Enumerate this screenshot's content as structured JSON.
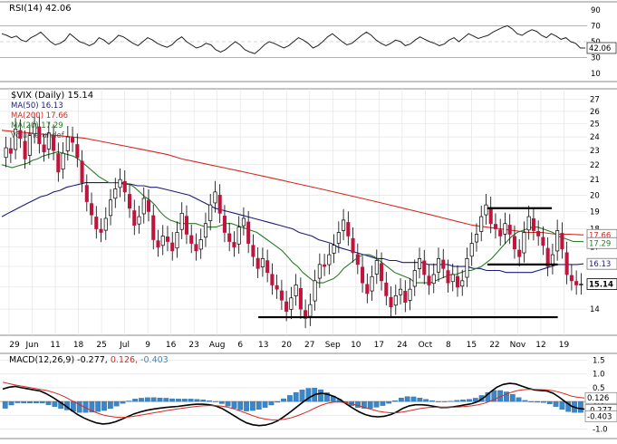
{
  "chart_data": [
    {
      "type": "line",
      "panel": "rsi",
      "title": "RSI(14) 42.06",
      "ticks": [
        "90",
        "70",
        "50",
        "30",
        "10"
      ],
      "tick_values": [
        90,
        70,
        50,
        30,
        10
      ],
      "ylim": [
        0,
        100
      ],
      "guides": [
        70,
        30
      ],
      "last_value_label": "42.06",
      "last_value": 42.06,
      "series": [
        {
          "values": [
            60,
            58,
            55,
            57,
            52,
            50,
            55,
            58,
            62,
            56,
            50,
            46,
            48,
            52,
            60,
            55,
            50,
            48,
            45,
            48,
            55,
            52,
            47,
            52,
            58,
            56,
            52,
            48,
            45,
            50,
            55,
            52,
            48,
            45,
            43,
            46,
            52,
            56,
            50,
            46,
            42,
            44,
            48,
            46,
            40,
            37,
            40,
            45,
            50,
            46,
            40,
            37,
            35,
            40,
            46,
            50,
            48,
            45,
            42,
            45,
            50,
            55,
            52,
            48,
            42,
            45,
            50,
            56,
            60,
            55,
            50,
            46,
            48,
            53,
            58,
            62,
            58,
            52,
            48,
            45,
            48,
            52,
            50,
            45,
            47,
            52,
            56,
            53,
            50,
            48,
            45,
            47,
            52,
            55,
            50,
            55,
            60,
            57,
            54,
            56,
            58,
            62,
            65,
            68,
            70,
            66,
            60,
            58,
            62,
            65,
            63,
            58,
            55,
            60,
            57,
            53,
            55,
            50,
            48,
            42,
            42
          ]
        }
      ],
      "colors": {
        "line": "#222222",
        "guide": "#999999",
        "label_bg": "#ffffff"
      }
    },
    {
      "type": "candlestick",
      "panel": "price",
      "title": "$VIX (Daily) 15.14",
      "ylim": [
        12.9,
        27.9
      ],
      "log_scale": true,
      "ticks": [
        "27",
        "26",
        "25",
        "24",
        "23",
        "22",
        "21",
        "20",
        "19",
        "18",
        "17",
        "16",
        "15",
        "14"
      ],
      "tick_values": [
        27,
        26,
        25,
        24,
        23,
        22,
        21,
        20,
        19,
        18,
        17,
        16,
        15,
        14
      ],
      "legend": [
        {
          "label": "MA(50) 16.13",
          "color": "#1c1c7a"
        },
        {
          "label": "MA(200) 17.66",
          "color": "#d42a20"
        },
        {
          "label": "MA(20) 17.29",
          "color": "#2a7a2a"
        },
        {
          "label": "Volume undef",
          "color": "#777777"
        }
      ],
      "right_labels": [
        {
          "text": "17.66",
          "value": 17.66,
          "color": "#d42a20"
        },
        {
          "text": "17.29",
          "value": 17.29,
          "color": "#2a7a2a"
        },
        {
          "text": "16.13",
          "value": 16.13,
          "color": "#1c1c7a"
        },
        {
          "text": "15.14",
          "value": 15.14,
          "color": "#000000",
          "bold": true
        }
      ],
      "close": [
        23.2,
        22.8,
        24.6,
        23.9,
        22.4,
        24.1,
        25.0,
        23.5,
        22.9,
        24.3,
        23.0,
        21.5,
        22.8,
        24.0,
        23.6,
        22.5,
        20.8,
        19.6,
        18.8,
        18.0,
        17.8,
        18.6,
        19.7,
        20.4,
        21.0,
        20.2,
        19.2,
        18.2,
        18.7,
        19.8,
        19.0,
        17.4,
        17.0,
        17.6,
        17.3,
        16.8,
        17.8,
        18.9,
        17.7,
        17.2,
        16.8,
        17.4,
        18.3,
        19.4,
        20.2,
        18.9,
        17.8,
        17.3,
        17.0,
        18.1,
        18.6,
        17.2,
        16.5,
        15.9,
        16.4,
        15.7,
        15.1,
        14.9,
        14.4,
        13.9,
        14.5,
        15.1,
        14.0,
        13.6,
        14.2,
        15.3,
        16.1,
        16.0,
        16.6,
        17.1,
        17.8,
        18.5,
        17.6,
        16.7,
        16.1,
        15.2,
        14.7,
        15.5,
        16.3,
        15.3,
        14.6,
        14.1,
        14.6,
        14.9,
        14.3,
        14.9,
        15.8,
        16.4,
        15.6,
        15.1,
        15.6,
        16.4,
        15.9,
        15.2,
        15.6,
        15.0,
        15.3,
        16.4,
        17.2,
        17.7,
        18.7,
        19.4,
        18.3,
        18.0,
        17.6,
        18.3,
        17.7,
        16.9,
        16.5,
        17.8,
        18.7,
        17.9,
        17.6,
        17.1,
        16.0,
        16.6,
        17.9,
        16.9,
        15.6,
        15.3,
        15.1,
        15.14
      ],
      "ma20": [
        22.0,
        21.9,
        21.8,
        21.9,
        22.0,
        22.1,
        22.3,
        22.4,
        22.6,
        22.7,
        22.8,
        22.9,
        22.8,
        22.7,
        22.6,
        22.4,
        22.1,
        21.8,
        21.5,
        21.2,
        21.0,
        20.8,
        20.8,
        20.8,
        20.8,
        20.7,
        20.5,
        20.2,
        19.9,
        19.7,
        19.4,
        19.0,
        18.7,
        18.5,
        18.4,
        18.3,
        18.3,
        18.3,
        18.3,
        18.2,
        18.1,
        18.1,
        18.1,
        18.2,
        18.3,
        18.3,
        18.2,
        18.1,
        18.0,
        17.9,
        17.8,
        17.6,
        17.4,
        17.2,
        17.0,
        16.8,
        16.5,
        16.2,
        16.0,
        15.7,
        15.5,
        15.3,
        15.2,
        15.2,
        15.3,
        15.4,
        15.6,
        15.9,
        16.1,
        16.3,
        16.5,
        16.6,
        16.6,
        16.5,
        16.3,
        16.1,
        15.9,
        15.7,
        15.6,
        15.5,
        15.4,
        15.2,
        15.2,
        15.2,
        15.2,
        15.3,
        15.4,
        15.5,
        15.6,
        15.6,
        15.7,
        15.8,
        15.8,
        15.9,
        16.0,
        16.2,
        16.4,
        16.7,
        17.0,
        17.3,
        17.6,
        17.8,
        17.9,
        18.0,
        18.1,
        18.1,
        18.0,
        17.9,
        17.8,
        17.6,
        17.5,
        17.4,
        17.3,
        17.3,
        17.29
      ],
      "ma50": [
        18.7,
        18.9,
        19.1,
        19.3,
        19.5,
        19.7,
        19.9,
        20.0,
        20.2,
        20.3,
        20.5,
        20.6,
        20.7,
        20.8,
        20.8,
        20.8,
        20.8,
        20.8,
        20.8,
        20.7,
        20.7,
        20.6,
        20.6,
        20.5,
        20.5,
        20.4,
        20.3,
        20.2,
        20.1,
        20.0,
        19.8,
        19.6,
        19.4,
        19.2,
        19.1,
        19.0,
        18.9,
        18.8,
        18.7,
        18.6,
        18.5,
        18.4,
        18.3,
        18.2,
        18.1,
        18.0,
        17.8,
        17.7,
        17.6,
        17.4,
        17.3,
        17.2,
        17.0,
        16.9,
        16.8,
        16.7,
        16.6,
        16.5,
        16.4,
        16.4,
        16.3,
        16.3,
        16.2,
        16.2,
        16.2,
        16.2,
        16.1,
        16.1,
        16.1,
        16.1,
        16.0,
        16.0,
        16.0,
        15.9,
        15.9,
        15.8,
        15.8,
        15.8,
        15.7,
        15.7,
        15.7,
        15.7,
        15.7,
        15.8,
        15.9,
        16.0,
        16.1,
        16.1,
        16.1,
        16.1,
        16.13
      ],
      "ma200": [
        24.5,
        24.4,
        24.3,
        24.2,
        24.1,
        24.0,
        23.9,
        23.7,
        23.5,
        23.3,
        23.1,
        22.9,
        22.7,
        22.4,
        22.2,
        22.0,
        21.8,
        21.6,
        21.4,
        21.2,
        21.0,
        20.8,
        20.6,
        20.4,
        20.2,
        20.0,
        19.8,
        19.6,
        19.4,
        19.2,
        19.0,
        18.8,
        18.6,
        18.4,
        18.2,
        18.1,
        18.0,
        17.9,
        17.8,
        17.8,
        17.7,
        17.7,
        17.66
      ],
      "support_lines": [
        {
          "value": 19.2,
          "from": 0.83,
          "to": 0.94
        },
        {
          "value": 16.1,
          "from": 0.83,
          "to": 0.95
        },
        {
          "value": 13.65,
          "from": 0.44,
          "to": 0.95
        }
      ],
      "x_labels": [
        "29",
        "Jun",
        "11",
        "18",
        "25",
        "Jul",
        "9",
        "16",
        "23",
        "Aug",
        "6",
        "13",
        "20",
        "27",
        "Sep",
        "10",
        "17",
        "24",
        "Oct",
        "8",
        "15",
        "22",
        "Nov",
        "12",
        "19"
      ],
      "colors": {
        "up": "#ffffff",
        "down": "#c0143c",
        "body_up_edge": "#000000",
        "wick": "#000000"
      }
    },
    {
      "type": "line",
      "panel": "macd",
      "title": "MACD(12,26,9) -0.277, 0.126, -0.403",
      "title_parts": [
        {
          "text": "MACD(12,26,9) -0.277,",
          "color": "#000000"
        },
        {
          "text": " 0.126,",
          "color": "#d42a20"
        },
        {
          "text": " -0.403",
          "color": "#3a86c8"
        }
      ],
      "ticks": [
        "1.5",
        "1.0",
        "0.5",
        "0.0",
        "-0.5",
        "-1.0"
      ],
      "tick_values": [
        1.5,
        1.0,
        0.5,
        0.0,
        -0.5,
        -1.0
      ],
      "ylim": [
        -1.35,
        1.75
      ],
      "right_labels": [
        {
          "text": "0.126",
          "value": 0.126
        },
        {
          "text": "-0.277",
          "value": -0.277
        },
        {
          "text": "-0.403",
          "value": -0.403
        }
      ],
      "series": [
        {
          "role": "macd",
          "color": "#000000",
          "values": [
            0.45,
            0.52,
            0.55,
            0.5,
            0.46,
            0.42,
            0.38,
            0.28,
            0.15,
            0.0,
            -0.15,
            -0.32,
            -0.48,
            -0.6,
            -0.7,
            -0.78,
            -0.82,
            -0.8,
            -0.74,
            -0.65,
            -0.55,
            -0.45,
            -0.38,
            -0.32,
            -0.28,
            -0.25,
            -0.22,
            -0.2,
            -0.18,
            -0.15,
            -0.12,
            -0.1,
            -0.1,
            -0.12,
            -0.16,
            -0.25,
            -0.38,
            -0.52,
            -0.66,
            -0.78,
            -0.85,
            -0.88,
            -0.86,
            -0.8,
            -0.7,
            -0.55,
            -0.38,
            -0.2,
            -0.02,
            0.14,
            0.26,
            0.3,
            0.26,
            0.18,
            0.06,
            -0.1,
            -0.25,
            -0.38,
            -0.48,
            -0.54,
            -0.56,
            -0.54,
            -0.48,
            -0.38,
            -0.25,
            -0.16,
            -0.12,
            -0.12,
            -0.14,
            -0.18,
            -0.22,
            -0.22,
            -0.2,
            -0.16,
            -0.12,
            -0.08,
            0.0,
            0.15,
            0.35,
            0.52,
            0.62,
            0.66,
            0.64,
            0.56,
            0.48,
            0.42,
            0.4,
            0.38,
            0.3,
            0.15,
            -0.02,
            -0.18,
            -0.25,
            -0.277
          ]
        },
        {
          "role": "signal",
          "color": "#d42a20",
          "values": [
            0.7,
            0.65,
            0.6,
            0.56,
            0.52,
            0.48,
            0.44,
            0.4,
            0.34,
            0.26,
            0.16,
            0.04,
            -0.08,
            -0.2,
            -0.31,
            -0.41,
            -0.49,
            -0.54,
            -0.57,
            -0.58,
            -0.57,
            -0.54,
            -0.5,
            -0.46,
            -0.42,
            -0.38,
            -0.34,
            -0.3,
            -0.27,
            -0.24,
            -0.21,
            -0.18,
            -0.16,
            -0.15,
            -0.15,
            -0.17,
            -0.21,
            -0.27,
            -0.35,
            -0.43,
            -0.52,
            -0.59,
            -0.64,
            -0.67,
            -0.67,
            -0.65,
            -0.6,
            -0.53,
            -0.44,
            -0.34,
            -0.23,
            -0.13,
            -0.06,
            -0.02,
            -0.02,
            -0.05,
            -0.1,
            -0.16,
            -0.23,
            -0.29,
            -0.35,
            -0.39,
            -0.41,
            -0.41,
            -0.38,
            -0.34,
            -0.29,
            -0.25,
            -0.22,
            -0.21,
            -0.21,
            -0.21,
            -0.21,
            -0.2,
            -0.18,
            -0.16,
            -0.12,
            -0.07,
            0.02,
            0.12,
            0.22,
            0.31,
            0.38,
            0.42,
            0.44,
            0.44,
            0.43,
            0.42,
            0.39,
            0.34,
            0.27,
            0.19,
            0.15,
            0.126
          ]
        }
      ],
      "histogram": {
        "color": "#3a86c8",
        "values": [
          -0.25,
          -0.13,
          -0.05,
          -0.06,
          -0.06,
          -0.06,
          -0.06,
          -0.12,
          -0.19,
          -0.26,
          -0.31,
          -0.36,
          -0.4,
          -0.4,
          -0.39,
          -0.37,
          -0.33,
          -0.26,
          -0.17,
          -0.07,
          0.02,
          0.09,
          0.12,
          0.14,
          0.14,
          0.13,
          0.12,
          0.1,
          0.09,
          0.09,
          0.09,
          0.08,
          0.06,
          0.03,
          -0.01,
          -0.08,
          -0.17,
          -0.25,
          -0.31,
          -0.35,
          -0.33,
          -0.29,
          -0.22,
          -0.13,
          -0.03,
          0.1,
          0.22,
          0.33,
          0.42,
          0.48,
          0.49,
          0.43,
          0.32,
          0.2,
          0.08,
          -0.05,
          -0.15,
          -0.22,
          -0.25,
          -0.25,
          -0.21,
          -0.15,
          -0.07,
          0.03,
          0.13,
          0.18,
          0.17,
          0.13,
          0.08,
          0.03,
          -0.01,
          -0.01,
          0.01,
          0.04,
          0.06,
          0.08,
          0.12,
          0.22,
          0.33,
          0.4,
          0.4,
          0.35,
          0.26,
          0.14,
          0.04,
          -0.02,
          -0.03,
          -0.04,
          -0.09,
          -0.19,
          -0.29,
          -0.37,
          -0.4,
          -0.403
        ]
      }
    }
  ]
}
